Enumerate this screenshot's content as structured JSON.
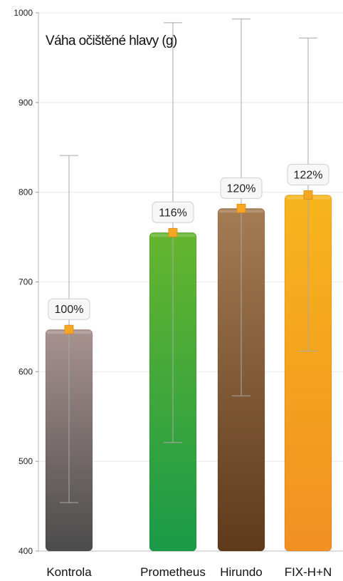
{
  "chart_data": {
    "type": "bar",
    "title": "Váha očištěné hlavy (g)",
    "xlabel": "",
    "ylabel": "",
    "ylim": [
      400,
      1000
    ],
    "yticks": [
      400,
      500,
      600,
      700,
      800,
      900,
      1000
    ],
    "grid": true,
    "categories": [
      "Kontrola",
      "Prometheus",
      "Hirundo",
      "FIX-H+N"
    ],
    "values": [
      647,
      755,
      782,
      797
    ],
    "error_low": [
      454,
      521,
      573,
      623
    ],
    "error_high": [
      841,
      989,
      993,
      972
    ],
    "data_labels": [
      "100%",
      "116%",
      "120%",
      "122%"
    ],
    "colors": {
      "bar_top": [
        "#a89290",
        "#66b52e",
        "#a47c54",
        "#f6b51c"
      ],
      "bar_bottom": [
        "#4b4b4b",
        "#1a9a48",
        "#5e3a1a",
        "#f29022"
      ],
      "marker": "#f5a623",
      "error_line": "#a8a8a8",
      "grid": "#e8e8e8"
    }
  }
}
